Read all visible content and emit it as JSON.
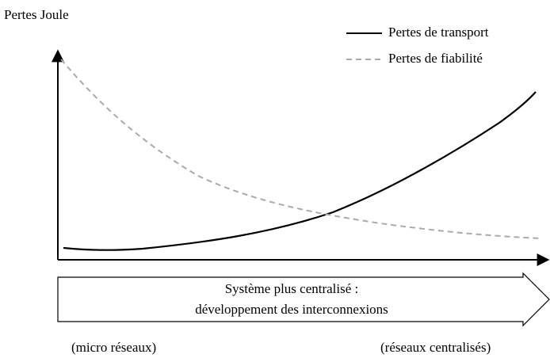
{
  "y_axis_label": "Pertes Joule",
  "legend": [
    {
      "name": "Pertes de transport"
    },
    {
      "name": "Pertes de fiabilité"
    }
  ],
  "arrow": {
    "lines": [
      "Système plus centralisé :",
      "développement des interconnexions"
    ]
  },
  "x_labels": {
    "left": "(micro réseaux)",
    "right": "(réseaux centralisés)"
  }
}
